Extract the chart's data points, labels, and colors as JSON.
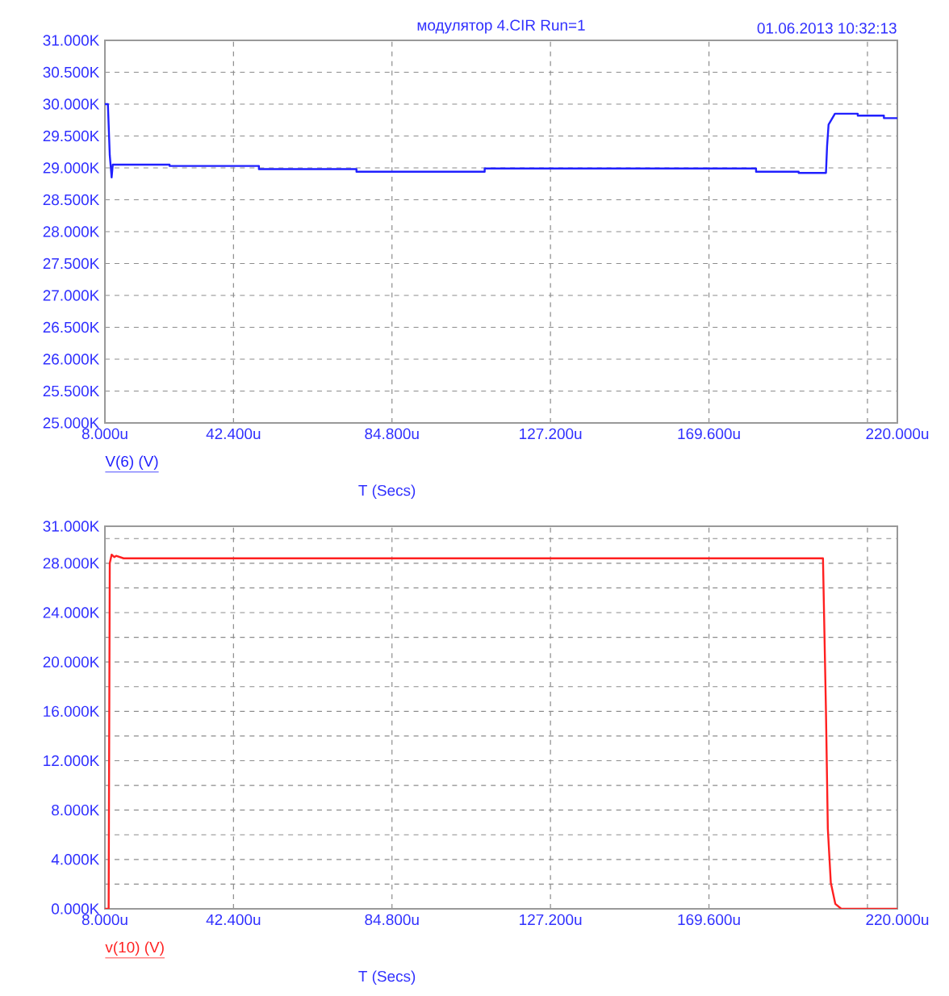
{
  "chart_data": [
    {
      "type": "line",
      "title": "модулятор 4.CIR Run=1",
      "subtitle": "01.06.2013 10:32:13",
      "xlabel": "T (Secs)",
      "grid": true,
      "xlim": [
        8,
        220
      ],
      "xticks": [
        {
          "value": 8,
          "label": "8.000u"
        },
        {
          "value": 42.4,
          "label": "42.400u"
        },
        {
          "value": 84.8,
          "label": "84.800u"
        },
        {
          "value": 127.2,
          "label": "127.200u"
        },
        {
          "value": 169.6,
          "label": "169.600u"
        },
        {
          "value": 212,
          "label": null
        },
        {
          "value": 220,
          "label": "220.000u"
        }
      ],
      "ylim": [
        25,
        31
      ],
      "yticks": [
        {
          "value": 25,
          "label": "25.000K"
        },
        {
          "value": 25.5,
          "label": "25.500K"
        },
        {
          "value": 26,
          "label": "26.000K"
        },
        {
          "value": 26.5,
          "label": "26.500K"
        },
        {
          "value": 27,
          "label": "27.000K"
        },
        {
          "value": 27.5,
          "label": "27.500K"
        },
        {
          "value": 28,
          "label": "28.000K"
        },
        {
          "value": 28.5,
          "label": "28.500K"
        },
        {
          "value": 29,
          "label": "29.000K"
        },
        {
          "value": 29.5,
          "label": "29.500K"
        },
        {
          "value": 30,
          "label": "30.000K"
        },
        {
          "value": 30.5,
          "label": "30.500K"
        },
        {
          "value": 31,
          "label": "31.000K"
        }
      ],
      "series": [
        {
          "name": "V(6) (V)",
          "color": "#2020ff",
          "x": [
            8,
            8.8,
            9.3,
            9.8,
            10.1,
            25.3,
            25.3,
            49.2,
            49.2,
            75.3,
            75.3,
            109.6,
            109.6,
            182.2,
            182.2,
            193.6,
            193.6,
            200.9,
            201.2,
            201.6,
            203.3,
            209.4,
            209.4,
            216.4,
            216.4,
            220
          ],
          "values": [
            30.0,
            30.0,
            29.2,
            28.85,
            29.05,
            29.05,
            29.03,
            29.03,
            28.98,
            28.98,
            28.94,
            28.94,
            28.99,
            28.99,
            28.94,
            28.94,
            28.92,
            28.92,
            29.34,
            29.68,
            29.85,
            29.85,
            29.82,
            29.82,
            29.78,
            29.78
          ]
        }
      ]
    },
    {
      "type": "line",
      "xlabel": "T (Secs)",
      "grid": true,
      "xlim": [
        8,
        220
      ],
      "xticks": [
        {
          "value": 8,
          "label": "8.000u"
        },
        {
          "value": 42.4,
          "label": "42.400u"
        },
        {
          "value": 84.8,
          "label": "84.800u"
        },
        {
          "value": 127.2,
          "label": "127.200u"
        },
        {
          "value": 169.6,
          "label": "169.600u"
        },
        {
          "value": 212,
          "label": null
        },
        {
          "value": 220,
          "label": "220.000u"
        }
      ],
      "ylim": [
        0,
        31
      ],
      "yticks": [
        {
          "value": 0,
          "label": "0.000K"
        },
        {
          "value": 2,
          "label": null
        },
        {
          "value": 4,
          "label": "4.000K"
        },
        {
          "value": 6,
          "label": null
        },
        {
          "value": 8,
          "label": "8.000K"
        },
        {
          "value": 10,
          "label": null
        },
        {
          "value": 12,
          "label": "12.000K"
        },
        {
          "value": 14,
          "label": null
        },
        {
          "value": 16,
          "label": "16.000K"
        },
        {
          "value": 18,
          "label": null
        },
        {
          "value": 20,
          "label": "20.000K"
        },
        {
          "value": 22,
          "label": null
        },
        {
          "value": 24,
          "label": "24.000K"
        },
        {
          "value": 26,
          "label": null
        },
        {
          "value": 28,
          "label": "28.000K"
        },
        {
          "value": 30,
          "label": null
        },
        {
          "value": 31,
          "label": "31.000K"
        }
      ],
      "series": [
        {
          "name": "v(10) (V)",
          "color": "#ff2020",
          "x": [
            8,
            9.0,
            9.3,
            9.8,
            10.5,
            11,
            13,
            200.1,
            200.9,
            201.4,
            202.2,
            203.4,
            205.0,
            220
          ],
          "values": [
            0,
            0,
            28.0,
            28.7,
            28.5,
            28.6,
            28.4,
            28.4,
            16.0,
            6.5,
            2.1,
            0.4,
            0,
            0
          ]
        }
      ]
    }
  ]
}
